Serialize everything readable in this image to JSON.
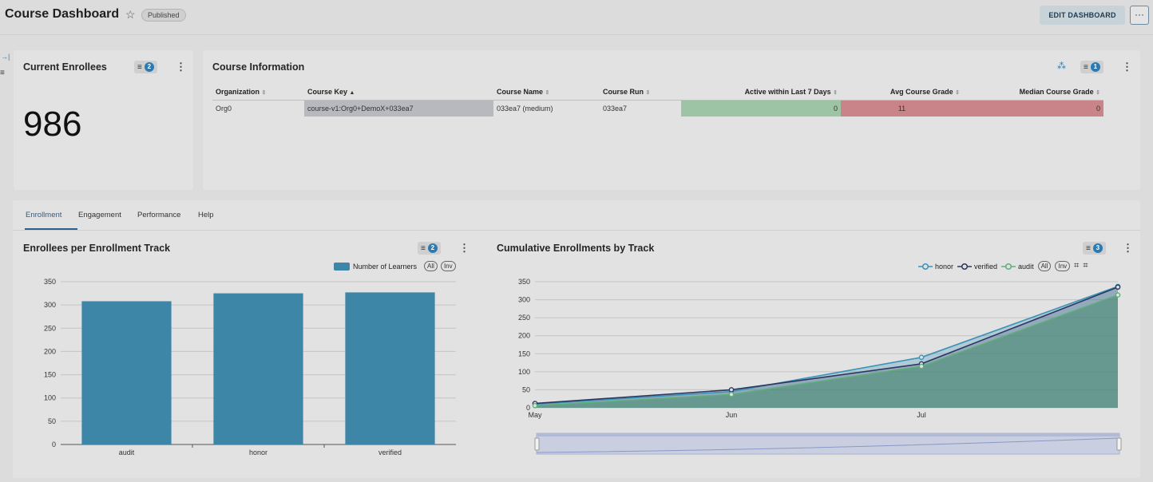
{
  "header": {
    "title": "Course Dashboard",
    "status_badge": "Published",
    "edit_button": "EDIT DASHBOARD",
    "more_button": "···"
  },
  "current_enrollees": {
    "title": "Current Enrollees",
    "filter_count": "2",
    "value": "986"
  },
  "course_info": {
    "title": "Course Information",
    "filter_count": "1",
    "columns": [
      "Organization",
      "Course Key",
      "Course Name",
      "Course Run",
      "Active within Last 7 Days",
      "Avg Course Grade",
      "Median Course Grade"
    ],
    "row": [
      "Org0",
      "course-v1:Org0+DemoX+033ea7",
      "033ea7 (medium)",
      "033ea7",
      "0",
      "11",
      "0"
    ]
  },
  "tabs": [
    "Enrollment",
    "Engagement",
    "Performance",
    "Help"
  ],
  "colors": {
    "accent": "#2c5f89",
    "bar": "#3d86a7",
    "green_cell": "#9dc4a5",
    "red_cell": "#c9848a",
    "honor": "#3b93b8",
    "verified": "#2c3760",
    "audit": "#5fae7a"
  },
  "chart1": {
    "title": "Enrollees per Enrollment Track",
    "filter_count": "2",
    "legend_all": "All",
    "legend_inv": "Inv"
  },
  "chart2": {
    "title": "Cumulative Enrollments by Track",
    "filter_count": "3",
    "legend_all": "All",
    "legend_inv": "Inv"
  },
  "chart_data": [
    {
      "type": "bar",
      "title": "Enrollees per Enrollment Track",
      "categories": [
        "audit",
        "honor",
        "verified"
      ],
      "series": [
        {
          "name": "Number of Learners",
          "values": [
            308,
            325,
            327
          ]
        }
      ],
      "ylim": [
        0,
        350
      ],
      "yticks": [
        0,
        50,
        100,
        150,
        200,
        250,
        300,
        350
      ],
      "grid": true,
      "legend": "top-right"
    },
    {
      "type": "line",
      "title": "Cumulative Enrollments by Track",
      "x": [
        "2020-05-01",
        "2020-06-01",
        "2020-07-01",
        "2020-08-01"
      ],
      "xticks": [
        "May",
        "Jun",
        "Jul"
      ],
      "series": [
        {
          "name": "honor",
          "values": [
            10,
            45,
            140,
            337
          ]
        },
        {
          "name": "verified",
          "values": [
            12,
            50,
            122,
            335
          ]
        },
        {
          "name": "audit",
          "values": [
            6,
            37,
            115,
            313
          ]
        }
      ],
      "ylim": [
        0,
        350
      ],
      "yticks": [
        0,
        50,
        100,
        150,
        200,
        250,
        300,
        350
      ],
      "grid": true,
      "legend": "top-right"
    }
  ]
}
